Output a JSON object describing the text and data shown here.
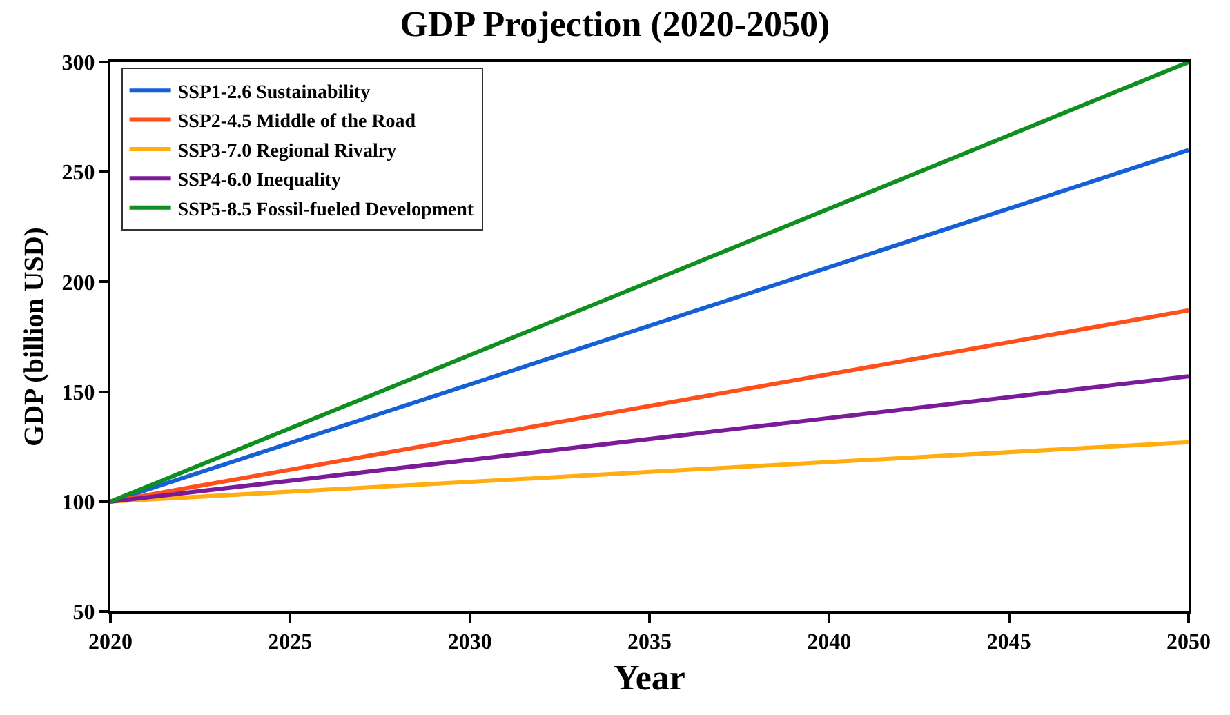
{
  "chart_data": {
    "type": "line",
    "title": "GDP Projection (2020-2050)",
    "xlabel": "Year",
    "ylabel": "GDP (billion USD)",
    "x": [
      2020,
      2050
    ],
    "series": [
      {
        "name": "SSP1-2.6 Sustainability",
        "color": "#1560d4",
        "values": [
          100,
          260
        ]
      },
      {
        "name": "SSP2-4.5 Middle of the Road",
        "color": "#ff4f1a",
        "values": [
          100,
          187
        ]
      },
      {
        "name": "SSP3-7.0 Regional Rivalry",
        "color": "#ffad0f",
        "values": [
          100,
          127
        ]
      },
      {
        "name": "SSP4-6.0 Inequality",
        "color": "#7b1b9a",
        "values": [
          100,
          157
        ]
      },
      {
        "name": "SSP5-8.5 Fossil-fueled Development",
        "color": "#0f8f1f",
        "values": [
          100,
          300
        ]
      }
    ],
    "xlim": [
      2020,
      2050
    ],
    "xticks": [
      2020,
      2025,
      2030,
      2035,
      2040,
      2045,
      2050
    ],
    "ylim": [
      50,
      300
    ],
    "yticks": [
      50,
      100,
      150,
      200,
      250,
      300
    ],
    "grid": false,
    "legend": "top left",
    "line_style": "solid",
    "marker": "none"
  }
}
